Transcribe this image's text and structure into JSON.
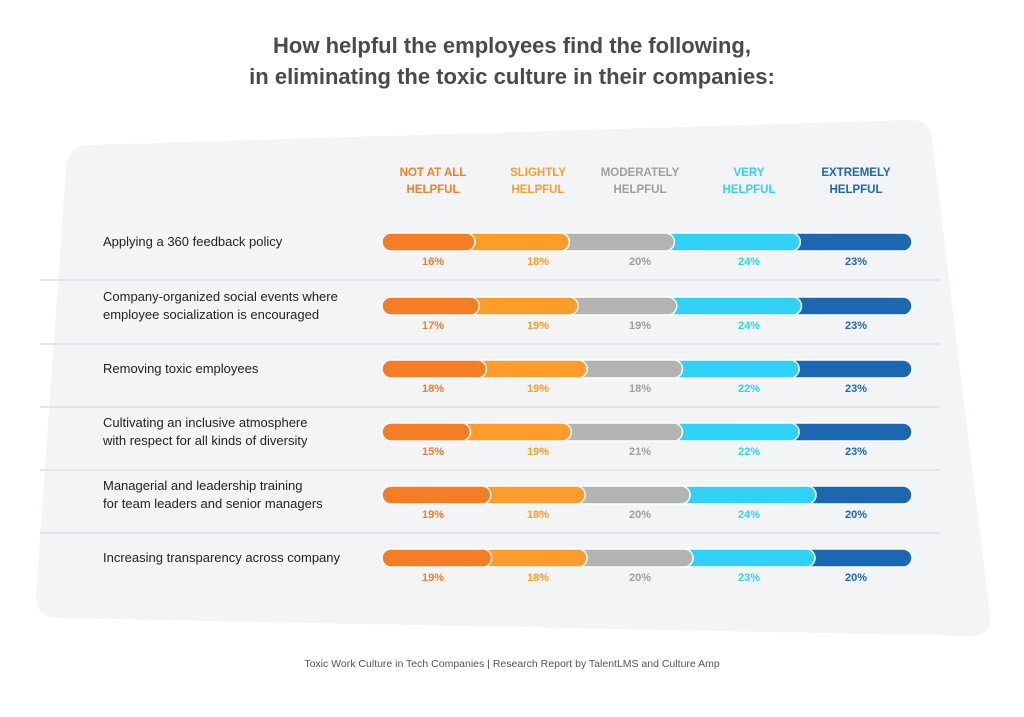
{
  "title_line1": "How helpful the employees find the following,",
  "title_line2": "in eliminating the toxic culture in their companies:",
  "footer": "Toxic Work Culture in Tech Companies | Research Report by TalentLMS and Culture Amp",
  "chart_data": {
    "type": "bar",
    "orientation": "horizontal",
    "stacked": true,
    "unit": "%",
    "categories": [
      "Applying a 360 feedback policy",
      "Company-organized social events where employee socialization is encouraged",
      "Removing toxic employees",
      "Cultivating an inclusive atmosphere with respect for all kinds of diversity",
      "Managerial and leadership training for team leaders and senior managers",
      "Increasing transparency across company"
    ],
    "category_lines": [
      [
        "Applying a 360 feedback policy"
      ],
      [
        "Company-organized social events where",
        "employee socialization is encouraged"
      ],
      [
        "Removing toxic employees"
      ],
      [
        "Cultivating an inclusive atmosphere",
        "with respect for all kinds of diversity"
      ],
      [
        "Managerial and leadership training",
        "for team leaders and senior managers"
      ],
      [
        "Increasing transparency across company"
      ]
    ],
    "series": [
      {
        "name": "NOT AT ALL HELPFUL",
        "label_lines": [
          "NOT AT ALL",
          "HELPFUL"
        ],
        "color": "#f57d25",
        "label_color": "#f57d25",
        "values": [
          16,
          17,
          18,
          15,
          19,
          19
        ]
      },
      {
        "name": "SLIGHTLY HELPFUL",
        "label_lines": [
          "SLIGHTLY",
          "HELPFUL"
        ],
        "color": "#fe9c2b",
        "label_color": "#fe9c2b",
        "values": [
          18,
          19,
          19,
          19,
          18,
          18
        ]
      },
      {
        "name": "MODERATELY HELPFUL",
        "label_lines": [
          "MODERATELY",
          "HELPFUL"
        ],
        "color": "#b3b3b3",
        "label_color": "#9e9e9e",
        "values": [
          20,
          19,
          18,
          21,
          20,
          20
        ]
      },
      {
        "name": "VERY HELPFUL",
        "label_lines": [
          "VERY",
          "HELPFUL"
        ],
        "color": "#2fd2f6",
        "label_color": "#2fd2f6",
        "values": [
          24,
          24,
          22,
          22,
          24,
          23
        ]
      },
      {
        "name": "EXTREMELY HELPFUL",
        "label_lines": [
          "EXTREMELY",
          "HELPFUL"
        ],
        "color": "#1b67b1",
        "label_color": "#1b67b1",
        "values": [
          23,
          23,
          23,
          23,
          20,
          20
        ]
      }
    ],
    "legend": "top"
  }
}
